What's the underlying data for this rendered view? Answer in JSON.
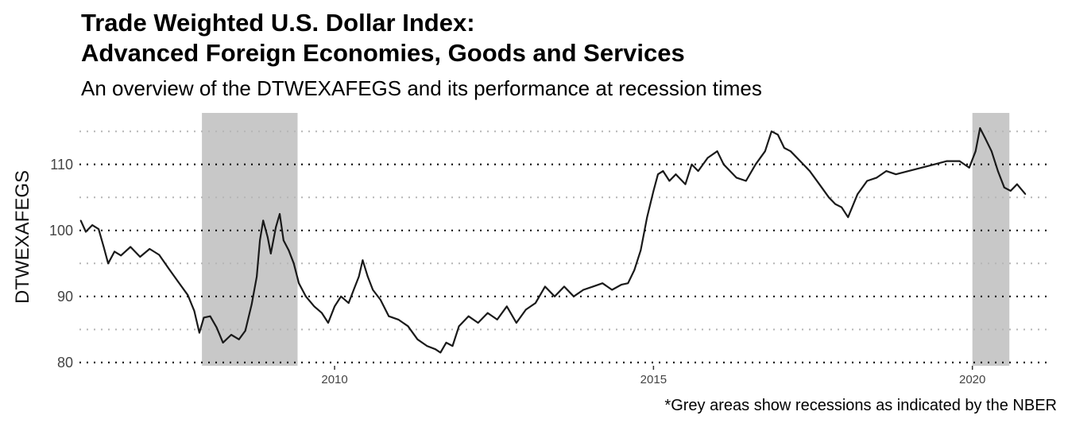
{
  "chart_data": {
    "type": "line",
    "title_line1": "Trade Weighted U.S. Dollar Index:",
    "title_line2": "Advanced Foreign Economies, Goods and Services",
    "subtitle": "An overview of the DTWEXAFEGS and its performance at recession times",
    "caption": "*Grey areas show recessions as indicated by the NBER",
    "xlabel": "",
    "ylabel": "DTWEXAFEGS",
    "xlim": [
      2006.0,
      2021.2
    ],
    "ylim": [
      79.5,
      117.8
    ],
    "x_ticks": [
      2010,
      2015,
      2020
    ],
    "y_ticks": [
      80,
      90,
      100,
      110
    ],
    "y_minor_ticks": [
      85,
      95,
      105,
      115
    ],
    "grid": "horizontal dotted",
    "line_color": "#1a1a1a",
    "recession_color": "#c8c8c8",
    "recessions": [
      {
        "start": 2007.92,
        "end": 2009.42
      },
      {
        "start": 2020.0,
        "end": 2020.58
      }
    ],
    "series": [
      {
        "x": [
          2006.02,
          2006.1,
          2006.2,
          2006.3,
          2006.38,
          2006.45,
          2006.55,
          2006.65,
          2006.8,
          2006.95,
          2007.1,
          2007.25,
          2007.4,
          2007.55,
          2007.7,
          2007.8,
          2007.88,
          2007.95,
          2008.05,
          2008.15,
          2008.25,
          2008.38,
          2008.5,
          2008.6,
          2008.7,
          2008.78,
          2008.83,
          2008.88,
          2008.95,
          2009.0,
          2009.08,
          2009.14,
          2009.2,
          2009.28,
          2009.36,
          2009.44,
          2009.55,
          2009.68,
          2009.8,
          2009.9,
          2010.0,
          2010.1,
          2010.22,
          2010.3,
          2010.38,
          2010.44,
          2010.52,
          2010.6,
          2010.72,
          2010.85,
          2011.0,
          2011.15,
          2011.3,
          2011.45,
          2011.58,
          2011.66,
          2011.75,
          2011.85,
          2011.95,
          2012.1,
          2012.25,
          2012.4,
          2012.55,
          2012.7,
          2012.85,
          2013.0,
          2013.15,
          2013.3,
          2013.45,
          2013.6,
          2013.75,
          2013.9,
          2014.05,
          2014.2,
          2014.35,
          2014.5,
          2014.6,
          2014.7,
          2014.8,
          2014.9,
          2015.0,
          2015.07,
          2015.15,
          2015.25,
          2015.35,
          2015.5,
          2015.6,
          2015.7,
          2015.85,
          2016.0,
          2016.1,
          2016.2,
          2016.3,
          2016.45,
          2016.6,
          2016.75,
          2016.85,
          2016.95,
          2017.05,
          2017.15,
          2017.3,
          2017.45,
          2017.6,
          2017.75,
          2017.85,
          2017.95,
          2018.05,
          2018.2,
          2018.35,
          2018.5,
          2018.65,
          2018.8,
          2019.0,
          2019.2,
          2019.4,
          2019.6,
          2019.8,
          2019.95,
          2020.05,
          2020.12,
          2020.2,
          2020.3,
          2020.4,
          2020.5,
          2020.6,
          2020.7,
          2020.83
        ],
        "values": [
          101.5,
          99.8,
          100.8,
          100.2,
          97.5,
          95.0,
          96.8,
          96.2,
          97.5,
          96.0,
          97.2,
          96.3,
          94.2,
          92.2,
          90.2,
          87.8,
          84.5,
          86.8,
          87.0,
          85.3,
          83.0,
          84.2,
          83.5,
          84.8,
          88.8,
          93.0,
          98.5,
          101.5,
          99.0,
          96.5,
          100.5,
          102.5,
          98.5,
          97.0,
          95.0,
          92.0,
          90.0,
          88.5,
          87.5,
          86.0,
          88.5,
          90.0,
          89.0,
          91.0,
          93.0,
          95.5,
          93.0,
          91.0,
          89.5,
          87.0,
          86.5,
          85.5,
          83.5,
          82.5,
          82.0,
          81.5,
          83.0,
          82.5,
          85.5,
          87.0,
          86.0,
          87.5,
          86.5,
          88.5,
          86.0,
          88.0,
          89.0,
          91.5,
          90.0,
          91.5,
          90.0,
          91.0,
          91.5,
          92.0,
          91.0,
          91.8,
          92.0,
          94.0,
          97.0,
          102.0,
          106.0,
          108.5,
          109.0,
          107.5,
          108.5,
          107.0,
          110.0,
          109.0,
          111.0,
          112.0,
          110.0,
          109.0,
          108.0,
          107.5,
          110.0,
          112.0,
          115.0,
          114.5,
          112.5,
          112.0,
          110.5,
          109.0,
          107.0,
          105.0,
          104.0,
          103.5,
          102.0,
          105.5,
          107.5,
          108.0,
          109.0,
          108.5,
          109.0,
          109.5,
          110.0,
          110.5,
          110.5,
          109.5,
          112.0,
          115.5,
          114.0,
          112.0,
          109.0,
          106.5,
          106.0,
          107.0,
          105.5
        ]
      }
    ]
  }
}
